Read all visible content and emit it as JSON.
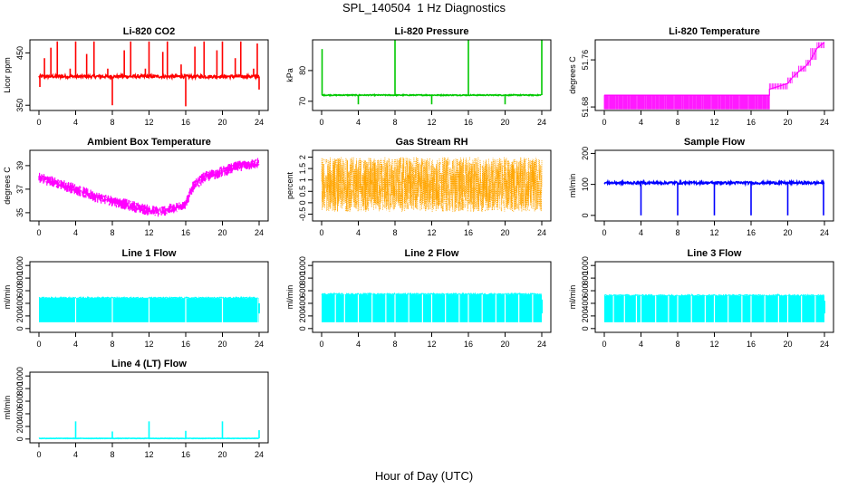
{
  "figure": {
    "title": "SPL_140504  1 Hz Diagnostics",
    "xlabel": "Hour of Day (UTC)"
  },
  "chart_data": [
    {
      "type": "line",
      "title": "Li-820 CO2",
      "ylabel": "Licor ppm",
      "color": "#ff0000",
      "xlim": [
        0,
        24
      ],
      "xticks": [
        0,
        4,
        8,
        12,
        16,
        20,
        24
      ],
      "ylim": [
        340,
        475
      ],
      "yticks": [
        350,
        450
      ],
      "baseline": 405,
      "noise": 3,
      "spikes": [
        {
          "x": 0.1,
          "y": 385
        },
        {
          "x": 0.6,
          "y": 440
        },
        {
          "x": 1.3,
          "y": 460
        },
        {
          "x": 2.0,
          "y": 472
        },
        {
          "x": 3.4,
          "y": 420
        },
        {
          "x": 4.0,
          "y": 472
        },
        {
          "x": 5.2,
          "y": 448
        },
        {
          "x": 6.0,
          "y": 472
        },
        {
          "x": 7.5,
          "y": 420
        },
        {
          "x": 8.0,
          "y": 350
        },
        {
          "x": 9.3,
          "y": 455
        },
        {
          "x": 10.0,
          "y": 472
        },
        {
          "x": 11.6,
          "y": 420
        },
        {
          "x": 12.0,
          "y": 472
        },
        {
          "x": 13.5,
          "y": 452
        },
        {
          "x": 14.0,
          "y": 472
        },
        {
          "x": 15.5,
          "y": 428
        },
        {
          "x": 16.0,
          "y": 348
        },
        {
          "x": 17.0,
          "y": 462
        },
        {
          "x": 18.0,
          "y": 472
        },
        {
          "x": 19.4,
          "y": 455
        },
        {
          "x": 20.0,
          "y": 472
        },
        {
          "x": 21.4,
          "y": 440
        },
        {
          "x": 22.0,
          "y": 472
        },
        {
          "x": 23.4,
          "y": 420
        },
        {
          "x": 23.8,
          "y": 468
        },
        {
          "x": 24.0,
          "y": 380
        }
      ]
    },
    {
      "type": "line",
      "title": "Li-820 Pressure",
      "ylabel": "kPa",
      "color": "#00c800",
      "xlim": [
        0,
        24
      ],
      "xticks": [
        0,
        4,
        8,
        12,
        16,
        20,
        24
      ],
      "ylim": [
        67,
        90
      ],
      "yticks": [
        70,
        80
      ],
      "baseline": 72,
      "noise": 0.15,
      "spikes": [
        {
          "x": 0.05,
          "y": 87
        },
        {
          "x": 4.0,
          "y": 69
        },
        {
          "x": 8.0,
          "y": 90
        },
        {
          "x": 12.0,
          "y": 69
        },
        {
          "x": 16.0,
          "y": 90
        },
        {
          "x": 20.0,
          "y": 69
        },
        {
          "x": 24.0,
          "y": 90
        }
      ]
    },
    {
      "type": "line",
      "title": "Li-820 Temperature",
      "ylabel": "degrees C",
      "color": "#ff00ff",
      "xlim": [
        0,
        24
      ],
      "xticks": [
        0,
        4,
        8,
        12,
        16,
        20,
        24
      ],
      "ylim": [
        51.674,
        51.794
      ],
      "yticks": [
        51.68,
        51.76
      ],
      "steps": [
        {
          "x": 0,
          "y": 51.7
        },
        {
          "x": 18.0,
          "y": 51.7
        },
        {
          "x": 18.0,
          "y": 51.71
        },
        {
          "x": 20.0,
          "y": 51.72
        },
        {
          "x": 20.5,
          "y": 51.73
        },
        {
          "x": 21.2,
          "y": 51.74
        },
        {
          "x": 22.0,
          "y": 51.75
        },
        {
          "x": 22.5,
          "y": 51.76
        },
        {
          "x": 23.2,
          "y": 51.78
        },
        {
          "x": 24.0,
          "y": 51.79
        }
      ]
    },
    {
      "type": "line",
      "title": "Ambient Box Temperature",
      "ylabel": "degrees C",
      "color": "#ff00ff",
      "xlim": [
        0,
        24
      ],
      "xticks": [
        0,
        4,
        8,
        12,
        16,
        20,
        24
      ],
      "ylim": [
        34.3,
        40.3
      ],
      "yticks": [
        35,
        37,
        39
      ],
      "trend": [
        {
          "x": 0,
          "y": 38.0
        },
        {
          "x": 2,
          "y": 37.5
        },
        {
          "x": 4,
          "y": 37.0
        },
        {
          "x": 6,
          "y": 36.4
        },
        {
          "x": 8,
          "y": 36.0
        },
        {
          "x": 10,
          "y": 35.6
        },
        {
          "x": 12,
          "y": 35.2
        },
        {
          "x": 13,
          "y": 35.1
        },
        {
          "x": 15,
          "y": 35.4
        },
        {
          "x": 16,
          "y": 35.8
        },
        {
          "x": 16.8,
          "y": 37.2
        },
        {
          "x": 18,
          "y": 38.0
        },
        {
          "x": 20,
          "y": 38.5
        },
        {
          "x": 22,
          "y": 39.0
        },
        {
          "x": 24,
          "y": 39.2
        }
      ],
      "noise": 0.6
    },
    {
      "type": "line",
      "title": "Gas Stream RH",
      "ylabel": "percent",
      "color": "#ffa500",
      "xlim": [
        0,
        24
      ],
      "xticks": [
        0,
        4,
        8,
        12,
        16,
        20,
        24
      ],
      "ylim": [
        -0.8,
        2.3
      ],
      "yticks": [
        -0.5,
        0.0,
        0.5,
        1.0,
        1.5,
        2.0
      ],
      "baseline": 0.8,
      "noise": 1.2
    },
    {
      "type": "line",
      "title": "Sample Flow",
      "ylabel": "ml/min",
      "color": "#0000ff",
      "xlim": [
        0,
        24
      ],
      "xticks": [
        0,
        4,
        8,
        12,
        16,
        20,
        24
      ],
      "ylim": [
        -18,
        210
      ],
      "yticks": [
        0,
        100,
        200
      ],
      "baseline": 105,
      "noise": 4,
      "spikes": [
        {
          "x": 4.0,
          "y": 0
        },
        {
          "x": 8.0,
          "y": 0
        },
        {
          "x": 12.0,
          "y": 0
        },
        {
          "x": 16.0,
          "y": 0
        },
        {
          "x": 20.0,
          "y": 0
        },
        {
          "x": 23.9,
          "y": 0
        }
      ]
    },
    {
      "type": "area",
      "title": "Line 1 Flow",
      "ylabel": "ml/min",
      "color": "#00ffff",
      "xlim": [
        0,
        24
      ],
      "xticks": [
        0,
        4,
        8,
        12,
        16,
        20,
        24
      ],
      "ylim": [
        -60,
        1060
      ],
      "yticks": [
        0,
        200,
        400,
        600,
        800,
        1000
      ],
      "band": [
        100,
        480
      ],
      "gaps": [
        4.0,
        8.0,
        12.0,
        16.0,
        20.0,
        23.9
      ]
    },
    {
      "type": "area",
      "title": "Line 2 Flow",
      "ylabel": "ml/min",
      "color": "#00ffff",
      "xlim": [
        0,
        24
      ],
      "xticks": [
        0,
        4,
        8,
        12,
        16,
        20,
        24
      ],
      "ylim": [
        -60,
        1060
      ],
      "yticks": [
        0,
        200,
        400,
        600,
        800,
        1000
      ],
      "band": [
        100,
        540
      ],
      "gaps": [
        1.5,
        2.5,
        4.0,
        5.5,
        7.0,
        8.0,
        9.5,
        11.0,
        12.0,
        13.5,
        15.0,
        16.0,
        17.5,
        19.0,
        20.0,
        21.5,
        23.0
      ]
    },
    {
      "type": "area",
      "title": "Line 3 Flow",
      "ylabel": "ml/min",
      "color": "#00ffff",
      "xlim": [
        0,
        24
      ],
      "xticks": [
        0,
        4,
        8,
        12,
        16,
        20,
        24
      ],
      "ylim": [
        -60,
        1060
      ],
      "yticks": [
        0,
        200,
        400,
        600,
        800,
        1000
      ],
      "band": [
        100,
        520
      ],
      "gaps": [
        1.0,
        2.2,
        3.5,
        4.0,
        5.6,
        7.0,
        8.0,
        9.5,
        11.0,
        12.0,
        13.5,
        15.0,
        16.0,
        17.5,
        19.0,
        20.0,
        21.5,
        23.0
      ]
    },
    {
      "type": "line",
      "title": "Line 4 (LT) Flow",
      "ylabel": "ml/min",
      "color": "#00ffff",
      "xlim": [
        0,
        24
      ],
      "xticks": [
        0,
        4,
        8,
        12,
        16,
        20,
        24
      ],
      "ylim": [
        -60,
        1060
      ],
      "yticks": [
        0,
        200,
        400,
        600,
        800,
        1000
      ],
      "baseline": 10,
      "noise": 3,
      "spikes": [
        {
          "x": 4.0,
          "y": 280
        },
        {
          "x": 8.0,
          "y": 120
        },
        {
          "x": 12.0,
          "y": 280
        },
        {
          "x": 16.0,
          "y": 130
        },
        {
          "x": 20.0,
          "y": 280
        },
        {
          "x": 24.0,
          "y": 140
        }
      ]
    }
  ]
}
